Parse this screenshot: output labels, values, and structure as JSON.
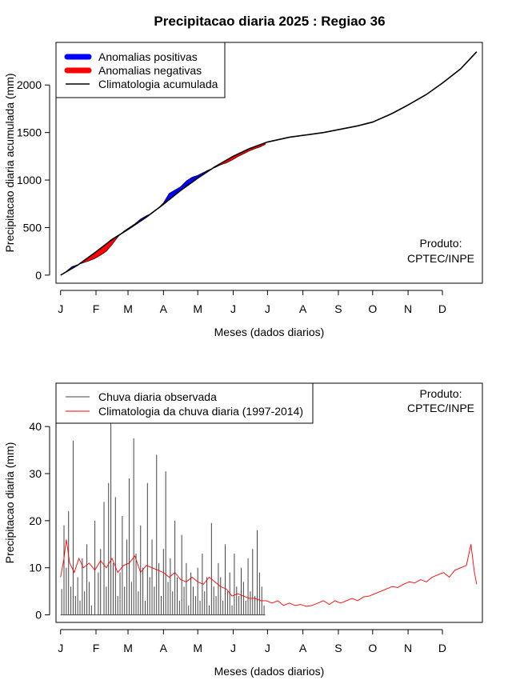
{
  "title": "Precipitacao diaria 2025 : Regiao 36",
  "chart_data": [
    {
      "type": "area",
      "ylabel": "Precipitacao diaria acumulada (mm)",
      "xlabel": "Meses (dados diarios)",
      "x_ticks": [
        "J",
        "F",
        "M",
        "A",
        "M",
        "J",
        "J",
        "A",
        "S",
        "O",
        "N",
        "D"
      ],
      "y_ticks": [
        0,
        500,
        1000,
        1500,
        2000
      ],
      "xlim_day": [
        -4,
        369
      ],
      "ylim": [
        -85,
        2448
      ],
      "grid": false,
      "legend_position": "top-left",
      "legend": [
        {
          "label": "Anomalias positivas",
          "color": "#0000ff",
          "kind": "thick"
        },
        {
          "label": "Anomalias negativas",
          "color": "#ff0000",
          "kind": "thick"
        },
        {
          "label": "Climatologia acumulada",
          "color": "#000000",
          "kind": "line"
        }
      ],
      "annotation": [
        "Produto:",
        "CPTEC/INPE"
      ],
      "climatology_points": [
        [
          0,
          0
        ],
        [
          15,
          105
        ],
        [
          31,
          245
        ],
        [
          45,
          375
        ],
        [
          59,
          480
        ],
        [
          75,
          610
        ],
        [
          90,
          745
        ],
        [
          105,
          890
        ],
        [
          120,
          1020
        ],
        [
          135,
          1140
        ],
        [
          151,
          1250
        ],
        [
          165,
          1330
        ],
        [
          181,
          1400
        ],
        [
          200,
          1450
        ],
        [
          212,
          1470
        ],
        [
          230,
          1500
        ],
        [
          243,
          1530
        ],
        [
          260,
          1570
        ],
        [
          273,
          1610
        ],
        [
          290,
          1700
        ],
        [
          304,
          1790
        ],
        [
          320,
          1900
        ],
        [
          334,
          2020
        ],
        [
          350,
          2170
        ],
        [
          364,
          2350
        ]
      ],
      "observed_points": [
        [
          0,
          0
        ],
        [
          5,
          40
        ],
        [
          10,
          90
        ],
        [
          15,
          110
        ],
        [
          20,
          130
        ],
        [
          25,
          150
        ],
        [
          30,
          175
        ],
        [
          35,
          210
        ],
        [
          40,
          250
        ],
        [
          45,
          320
        ],
        [
          50,
          400
        ],
        [
          55,
          460
        ],
        [
          60,
          500
        ],
        [
          65,
          540
        ],
        [
          70,
          590
        ],
        [
          75,
          625
        ],
        [
          80,
          650
        ],
        [
          85,
          700
        ],
        [
          90,
          760
        ],
        [
          95,
          860
        ],
        [
          100,
          895
        ],
        [
          105,
          930
        ],
        [
          110,
          990
        ],
        [
          115,
          1030
        ],
        [
          120,
          1050
        ],
        [
          125,
          1080
        ],
        [
          130,
          1110
        ],
        [
          135,
          1130
        ],
        [
          140,
          1160
        ],
        [
          145,
          1180
        ],
        [
          150,
          1210
        ],
        [
          155,
          1245
        ],
        [
          160,
          1275
        ],
        [
          165,
          1305
        ],
        [
          170,
          1330
        ],
        [
          175,
          1350
        ],
        [
          179,
          1375
        ]
      ],
      "observed_end_day": 179
    },
    {
      "type": "line",
      "ylabel": "Precipitacao diaria (mm)",
      "xlabel": "Meses (dados diarios)",
      "x_ticks": [
        "J",
        "F",
        "M",
        "A",
        "M",
        "J",
        "J",
        "A",
        "S",
        "O",
        "N",
        "D"
      ],
      "y_ticks": [
        0,
        10,
        20,
        30,
        40
      ],
      "xlim_day": [
        -4,
        369
      ],
      "ylim": [
        -1.6,
        49.2
      ],
      "grid": false,
      "legend_position": "top-left",
      "annotation": [
        "Produto:",
        "CPTEC/INPE"
      ],
      "series": [
        {
          "name": "Chuva diaria observada",
          "color": "#444444",
          "kind": "spikes",
          "peaks": [
            [
              1,
              5.5
            ],
            [
              3,
              19
            ],
            [
              5,
              10
            ],
            [
              7,
              22
            ],
            [
              9,
              6
            ],
            [
              11,
              37
            ],
            [
              13,
              4
            ],
            [
              15,
              8
            ],
            [
              17,
              3
            ],
            [
              19,
              12
            ],
            [
              21,
              5
            ],
            [
              23,
              15
            ],
            [
              25,
              7
            ],
            [
              27,
              2
            ],
            [
              30,
              20
            ],
            [
              33,
              9
            ],
            [
              35,
              14
            ],
            [
              38,
              24
            ],
            [
              40,
              6
            ],
            [
              42,
              28
            ],
            [
              44,
              42
            ],
            [
              46,
              11
            ],
            [
              48,
              25
            ],
            [
              50,
              4
            ],
            [
              52,
              9
            ],
            [
              54,
              21
            ],
            [
              56,
              6
            ],
            [
              58,
              16
            ],
            [
              60,
              29
            ],
            [
              62,
              7
            ],
            [
              64,
              37.5
            ],
            [
              66,
              13
            ],
            [
              68,
              5
            ],
            [
              70,
              19
            ],
            [
              72,
              10
            ],
            [
              74,
              3
            ],
            [
              76,
              28
            ],
            [
              78,
              8
            ],
            [
              80,
              16
            ],
            [
              82,
              6
            ],
            [
              84,
              34
            ],
            [
              86,
              11
            ],
            [
              88,
              4
            ],
            [
              90,
              14
            ],
            [
              92,
              30.5
            ],
            [
              94,
              7
            ],
            [
              96,
              12
            ],
            [
              98,
              5
            ],
            [
              100,
              20
            ],
            [
              102,
              8
            ],
            [
              104,
              3
            ],
            [
              106,
              17
            ],
            [
              108,
              6
            ],
            [
              110,
              11
            ],
            [
              112,
              2
            ],
            [
              114,
              9
            ],
            [
              116,
              6
            ],
            [
              118,
              4
            ],
            [
              120,
              10
            ],
            [
              122,
              3
            ],
            [
              124,
              13
            ],
            [
              126,
              5
            ],
            [
              128,
              8
            ],
            [
              130,
              2
            ],
            [
              132,
              19.5
            ],
            [
              134,
              6
            ],
            [
              136,
              4
            ],
            [
              138,
              11
            ],
            [
              140,
              8
            ],
            [
              142,
              3
            ],
            [
              144,
              15
            ],
            [
              146,
              5
            ],
            [
              148,
              9
            ],
            [
              150,
              2
            ],
            [
              152,
              13
            ],
            [
              154,
              6
            ],
            [
              156,
              4
            ],
            [
              158,
              10
            ],
            [
              160,
              7
            ],
            [
              162,
              3
            ],
            [
              164,
              12
            ],
            [
              166,
              5
            ],
            [
              168,
              14
            ],
            [
              170,
              4
            ],
            [
              172,
              18
            ],
            [
              174,
              9
            ],
            [
              176,
              6
            ],
            [
              178,
              2
            ]
          ]
        },
        {
          "name": "Climatologia da chuva diaria (1997-2014)",
          "color": "#ff0000",
          "kind": "line",
          "points": [
            [
              0,
              8
            ],
            [
              3,
              12
            ],
            [
              5,
              16
            ],
            [
              8,
              11
            ],
            [
              12,
              9
            ],
            [
              16,
              12
            ],
            [
              20,
              10
            ],
            [
              25,
              11
            ],
            [
              30,
              9.5
            ],
            [
              35,
              11.5
            ],
            [
              40,
              10
            ],
            [
              45,
              12
            ],
            [
              50,
              9
            ],
            [
              55,
              10.5
            ],
            [
              60,
              11
            ],
            [
              65,
              12.5
            ],
            [
              70,
              9
            ],
            [
              75,
              10.5
            ],
            [
              80,
              10
            ],
            [
              85,
              9.5
            ],
            [
              90,
              9
            ],
            [
              95,
              8
            ],
            [
              100,
              9
            ],
            [
              105,
              7.5
            ],
            [
              110,
              7
            ],
            [
              115,
              8
            ],
            [
              120,
              7
            ],
            [
              125,
              6.5
            ],
            [
              130,
              8
            ],
            [
              135,
              7
            ],
            [
              140,
              6
            ],
            [
              145,
              5.5
            ],
            [
              150,
              4
            ],
            [
              155,
              4.5
            ],
            [
              160,
              4
            ],
            [
              165,
              3.5
            ],
            [
              170,
              3.5
            ],
            [
              175,
              3
            ],
            [
              180,
              3
            ],
            [
              185,
              2.5
            ],
            [
              190,
              3
            ],
            [
              195,
              2
            ],
            [
              200,
              2.5
            ],
            [
              205,
              2
            ],
            [
              210,
              2.2
            ],
            [
              215,
              1.8
            ],
            [
              220,
              2
            ],
            [
              225,
              2.5
            ],
            [
              230,
              3
            ],
            [
              235,
              2.2
            ],
            [
              240,
              3
            ],
            [
              245,
              2.5
            ],
            [
              250,
              3
            ],
            [
              255,
              3.5
            ],
            [
              260,
              3
            ],
            [
              265,
              3.8
            ],
            [
              270,
              4
            ],
            [
              275,
              4.5
            ],
            [
              280,
              5
            ],
            [
              285,
              5.5
            ],
            [
              290,
              6
            ],
            [
              295,
              5.8
            ],
            [
              300,
              6.5
            ],
            [
              305,
              7
            ],
            [
              310,
              6.8
            ],
            [
              315,
              7.5
            ],
            [
              320,
              7
            ],
            [
              325,
              8
            ],
            [
              330,
              8.5
            ],
            [
              335,
              9
            ],
            [
              340,
              8
            ],
            [
              345,
              9.5
            ],
            [
              350,
              10
            ],
            [
              355,
              10.5
            ],
            [
              359,
              15
            ],
            [
              362,
              9
            ],
            [
              364,
              6.5
            ]
          ]
        }
      ]
    }
  ]
}
